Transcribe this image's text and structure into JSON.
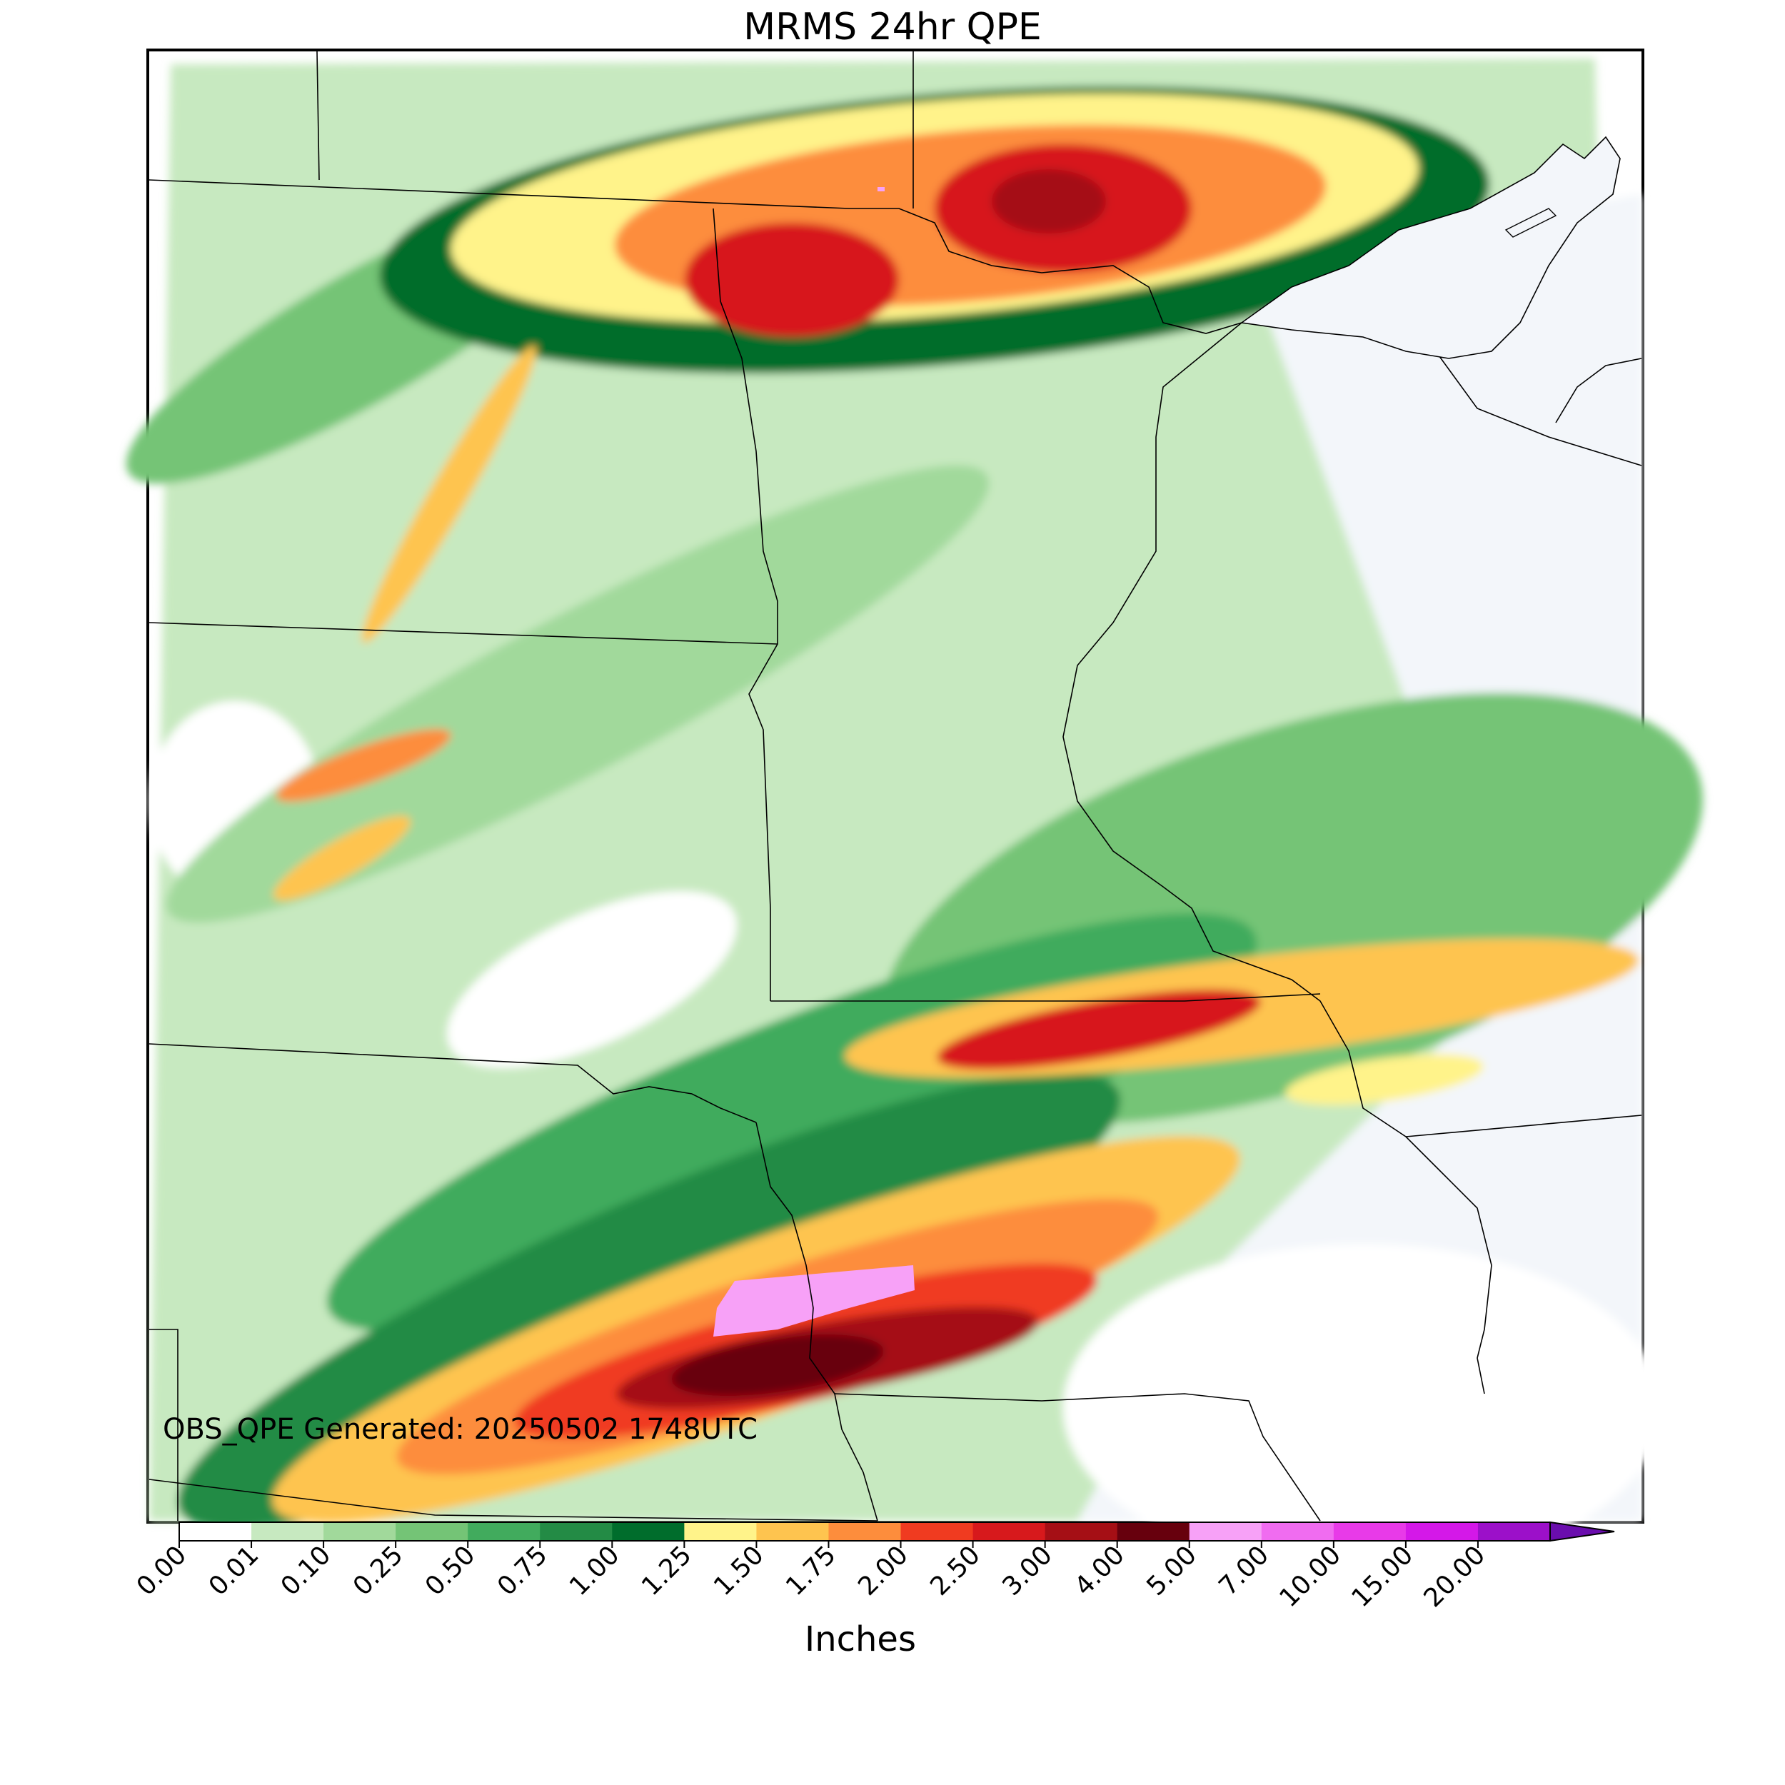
{
  "title": "MRMS 24hr QPE",
  "stamp": "OBS_QPE Generated: 20250502 1748UTC",
  "colorbar": {
    "label": "Inches",
    "extend": "max",
    "ticks": [
      "0.00",
      "0.01",
      "0.10",
      "0.25",
      "0.50",
      "0.75",
      "1.00",
      "1.25",
      "1.50",
      "1.75",
      "2.00",
      "2.50",
      "3.00",
      "4.00",
      "5.00",
      "7.00",
      "10.00",
      "15.00",
      "20.00"
    ],
    "colors": [
      "#ffffff",
      "#c7e9c0",
      "#a1d99b",
      "#74c476",
      "#41ab5d",
      "#238b45",
      "#006d2c",
      "#fff38a",
      "#fec44f",
      "#fd8d3c",
      "#f03b20",
      "#d7191c",
      "#a50f15",
      "#67000d",
      "#f7a1f7",
      "#f06cf0",
      "#e83ae8",
      "#d418e8",
      "#9c10c9"
    ],
    "extend_color": "#6a0dad"
  }
}
